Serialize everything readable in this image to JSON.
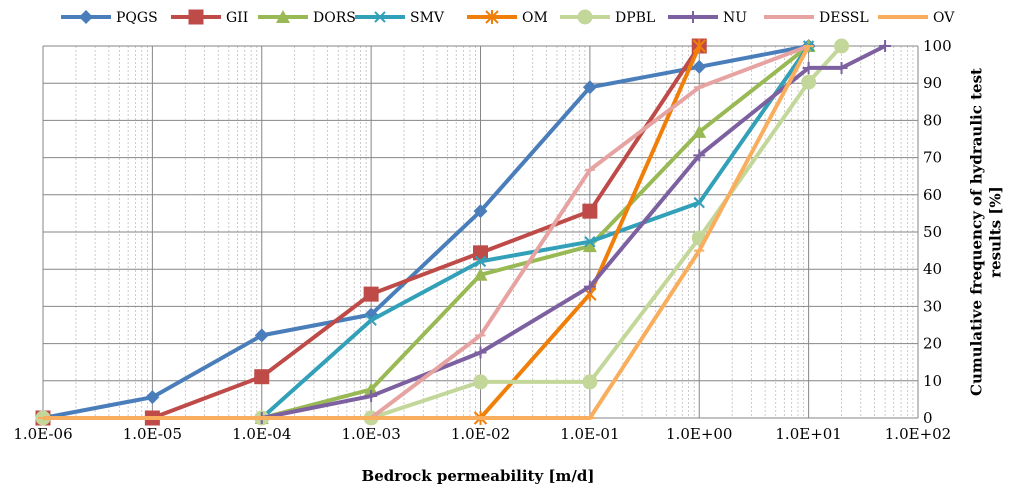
{
  "chart_data": {
    "type": "line",
    "title": "",
    "xlabel": "Bedrock permeability [m/d]",
    "ylabel": "Cumulative frequency of hydraulic test results [%]",
    "x_scale": "log",
    "xlim": [
      1e-06,
      100
    ],
    "ylim": [
      0,
      100
    ],
    "x_ticks": [
      1e-06,
      1e-05,
      0.0001,
      0.001,
      0.01,
      0.1,
      1,
      10,
      100
    ],
    "x_tick_labels": [
      "1.0E-06",
      "1.0E-05",
      "1.0E-04",
      "1.0E-03",
      "1.0E-02",
      "1.0E-01",
      "1.0E+00",
      "1.0E+01",
      "1.0E+02"
    ],
    "y_ticks": [
      0,
      10,
      20,
      30,
      40,
      50,
      60,
      70,
      80,
      90,
      100
    ],
    "y_tick_labels": [
      "0",
      "10",
      "20",
      "30",
      "40",
      "50",
      "60",
      "70",
      "80",
      "90",
      "100"
    ],
    "y_axis_side": "right",
    "grid": true,
    "legend_position": "top",
    "series": [
      {
        "name": "PQGS",
        "color": "#4a7ebb",
        "marker": "diamond",
        "points": [
          [
            1e-06,
            0
          ],
          [
            1e-05,
            5.6
          ],
          [
            0.0001,
            22.2
          ],
          [
            0.001,
            27.8
          ],
          [
            0.01,
            55.6
          ],
          [
            0.1,
            88.9
          ],
          [
            1,
            94.4
          ],
          [
            10,
            100
          ]
        ]
      },
      {
        "name": "GII",
        "color": "#be4b48",
        "marker": "square",
        "points": [
          [
            1e-06,
            0
          ],
          [
            1e-05,
            0
          ],
          [
            0.0001,
            11.1
          ],
          [
            0.001,
            33.3
          ],
          [
            0.01,
            44.4
          ],
          [
            0.1,
            55.6
          ],
          [
            1,
            100
          ]
        ]
      },
      {
        "name": "DORS",
        "color": "#98b954",
        "marker": "triangle",
        "points": [
          [
            0.0001,
            0
          ],
          [
            0.001,
            7.7
          ],
          [
            0.01,
            38.5
          ],
          [
            0.1,
            46.2
          ],
          [
            1,
            76.9
          ],
          [
            10,
            100
          ]
        ]
      },
      {
        "name": "SMV",
        "color": "#31a0b8",
        "marker": "x",
        "points": [
          [
            0.0001,
            0
          ],
          [
            0.001,
            26.3
          ],
          [
            0.01,
            42.1
          ],
          [
            0.1,
            47.4
          ],
          [
            1,
            57.9
          ],
          [
            10,
            100
          ]
        ]
      },
      {
        "name": "OM",
        "color": "#f07f09",
        "marker": "star",
        "points": [
          [
            0.01,
            0
          ],
          [
            0.1,
            33.3
          ],
          [
            1,
            100
          ]
        ]
      },
      {
        "name": "DPBL",
        "color": "#c4d79b",
        "marker": "circle",
        "points": [
          [
            1e-06,
            0
          ],
          [
            0.0001,
            0
          ],
          [
            0.001,
            0
          ],
          [
            0.01,
            9.7
          ],
          [
            0.1,
            9.7
          ],
          [
            1,
            48.4
          ],
          [
            10,
            90.3
          ],
          [
            20,
            100
          ]
        ]
      },
      {
        "name": "NU",
        "color": "#7d60a0",
        "marker": "plus",
        "points": [
          [
            0.0001,
            0
          ],
          [
            0.001,
            5.9
          ],
          [
            0.01,
            17.6
          ],
          [
            0.1,
            35.3
          ],
          [
            1,
            70.6
          ],
          [
            10,
            94.1
          ],
          [
            20,
            94.1
          ],
          [
            50,
            100
          ]
        ]
      },
      {
        "name": "DESSL",
        "color": "#e6a3a1",
        "marker": "dash",
        "points": [
          [
            0.001,
            0
          ],
          [
            0.01,
            22.2
          ],
          [
            0.1,
            66.7
          ],
          [
            1,
            88.9
          ],
          [
            10,
            100
          ]
        ]
      },
      {
        "name": "OV",
        "color": "#f9ae5e",
        "marker": "dash",
        "points": [
          [
            1e-06,
            0
          ],
          [
            0.01,
            0
          ],
          [
            0.1,
            0
          ],
          [
            1,
            45
          ],
          [
            10,
            100
          ]
        ]
      }
    ]
  }
}
